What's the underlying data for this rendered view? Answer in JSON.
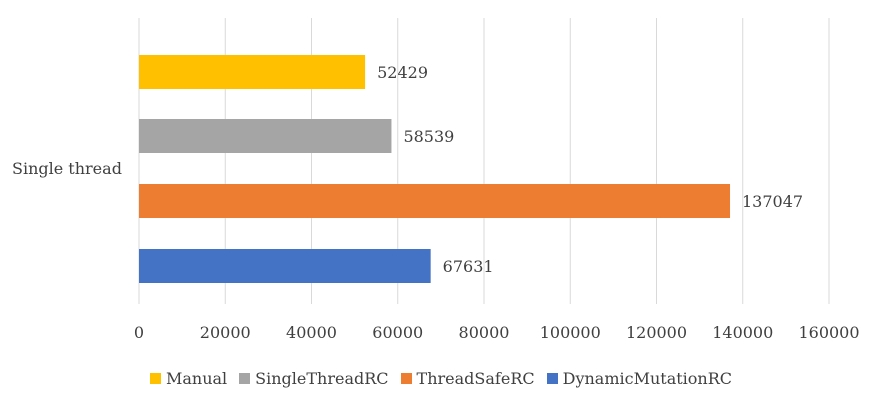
{
  "chart_data": {
    "type": "bar",
    "orientation": "horizontal",
    "categories": [
      "Single thread"
    ],
    "series": [
      {
        "name": "Manual",
        "values": [
          52429
        ],
        "color": "#FFC000"
      },
      {
        "name": "SingleThreadRC",
        "values": [
          58539
        ],
        "color": "#A5A5A5"
      },
      {
        "name": "ThreadSafeRC",
        "values": [
          137047
        ],
        "color": "#ED7D31"
      },
      {
        "name": "DynamicMutationRC",
        "values": [
          67631
        ],
        "color": "#4472C4"
      }
    ],
    "xlim": [
      0,
      160000
    ],
    "xticks": [
      "0",
      "20000",
      "40000",
      "60000",
      "80000",
      "100000",
      "120000",
      "140000",
      "160000"
    ],
    "data_labels": [
      "52429",
      "58539",
      "137047",
      "67631"
    ],
    "grid": "vertical",
    "legend": "bottom"
  }
}
